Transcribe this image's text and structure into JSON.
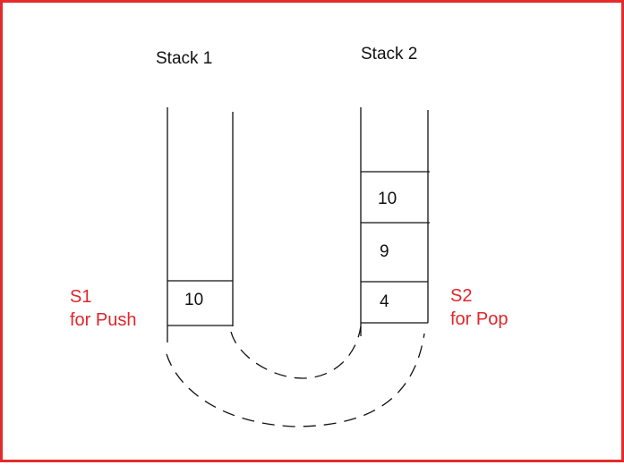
{
  "stack1": {
    "title": "Stack 1",
    "items": [
      "10"
    ],
    "label_line1": "S1",
    "label_line2": "for Push"
  },
  "stack2": {
    "title": "Stack 2",
    "items": [
      "10",
      "9",
      "4"
    ],
    "label_line1": "S2",
    "label_line2": "for Pop"
  },
  "colors": {
    "frame": "#e32b2b",
    "label": "#e0262a",
    "lines": "#111111"
  }
}
